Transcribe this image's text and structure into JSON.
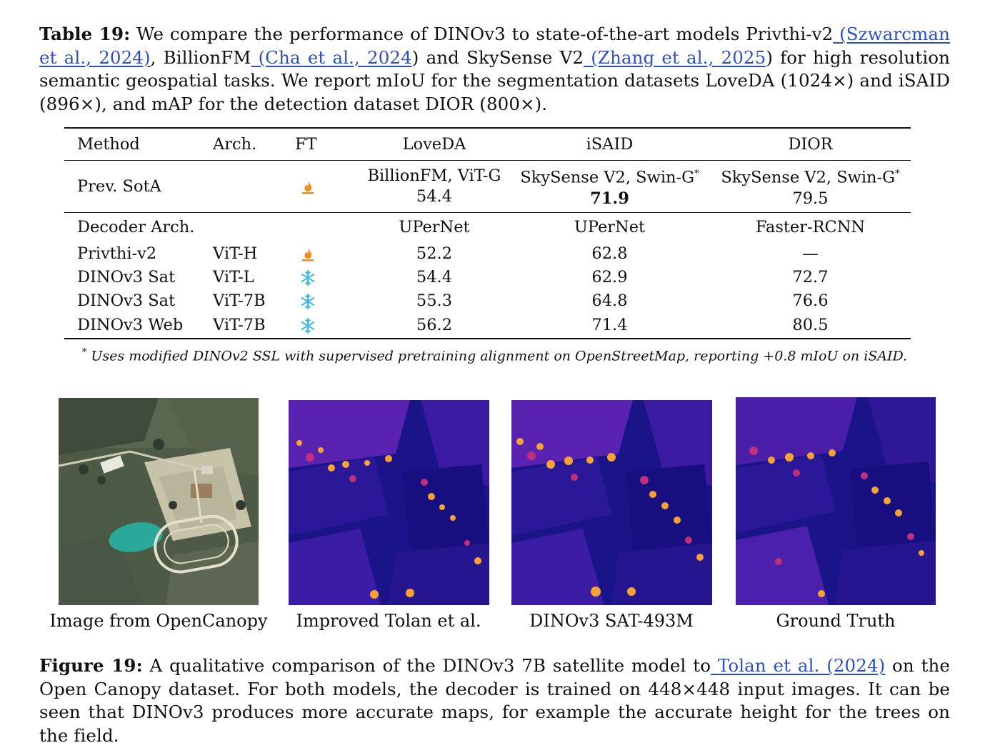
{
  "table_caption": {
    "label": "Table 19:",
    "text_1": " We compare the performance of DINOv3 to state-of-the-art models Privthi-v2",
    "link_1": " (Szwarcman et al., 2024)",
    "text_2": ", BillionFM",
    "link_2": " (Cha et al., 2024",
    "text_3": ") and SkySense V2",
    "link_3": " (Zhang et al., 2025",
    "text_4": ") for high resolution semantic geospatial tasks. We report mIoU for the segmentation datasets LoveDA (1024×) and iSAID (896×), and mAP for the detection dataset DIOR (800×)."
  },
  "table": {
    "headers": [
      "Method",
      "Arch.",
      "FT",
      "LoveDA",
      "iSAID",
      "DIOR"
    ],
    "prev_sota": {
      "method": "Prev. SotA",
      "ft_icon": "flame-icon",
      "loveda_model": "BillionFM, ViT-G",
      "loveda_value": "54.4",
      "isaid_model": "SkySense V2, Swin-G",
      "isaid_value": "71.9",
      "dior_model": "SkySense V2, Swin-G",
      "dior_value": "79.5",
      "footnote_mark": "*"
    },
    "decoder_row": {
      "label": "Decoder Arch.",
      "loveda": "UPerNet",
      "isaid": "UPerNet",
      "dior": "Faster-RCNN"
    },
    "rows": [
      {
        "method": "Privthi-v2",
        "arch": "ViT-H",
        "ft_icon": "flame-icon",
        "loveda": "52.2",
        "isaid": "62.8",
        "dior": "—"
      },
      {
        "method": "DINOv3 Sat",
        "arch": "ViT-L",
        "ft_icon": "snowflake-icon",
        "loveda": "54.4",
        "isaid": "62.9",
        "dior": "72.7"
      },
      {
        "method": "DINOv3 Sat",
        "arch": "ViT-7B",
        "ft_icon": "snowflake-icon",
        "loveda": "55.3",
        "isaid": "64.8",
        "dior": "76.6"
      },
      {
        "method": "DINOv3 Web",
        "arch": "ViT-7B",
        "ft_icon": "snowflake-icon",
        "loveda": "56.2",
        "isaid": "71.4",
        "dior": "80.5"
      }
    ]
  },
  "footnote": {
    "mark": "*",
    "text": " Uses modified DINOv2 SSL with supervised pretraining alignment on OpenStreetMap, reporting +0.8 mIoU on iSAID."
  },
  "figure": {
    "panels": [
      {
        "label": "Image from OpenCanopy"
      },
      {
        "label": "Improved Tolan et al."
      },
      {
        "label": "DINOv3 SAT-493M"
      },
      {
        "label": "Ground Truth"
      }
    ]
  },
  "figure_caption": {
    "label": "Figure 19:",
    "text_1": " A qualitative comparison of the DINOv3 7B satellite model to",
    "link_1": " Tolan et al. (2024)",
    "text_2": " on the Open Canopy dataset. For both models, the decoder is trained on 448×448 input images. It can be seen that DINOv3 produces more accurate maps, for example the accurate height for the trees on the field."
  },
  "colors": {
    "link": "#2b4fc9",
    "flame": "#f28a1c",
    "snowflake": "#3ab6e8",
    "heatmap_low": "#1b1488",
    "heatmap_mid": "#6a2bb8",
    "heatmap_high": "#f7a233"
  }
}
